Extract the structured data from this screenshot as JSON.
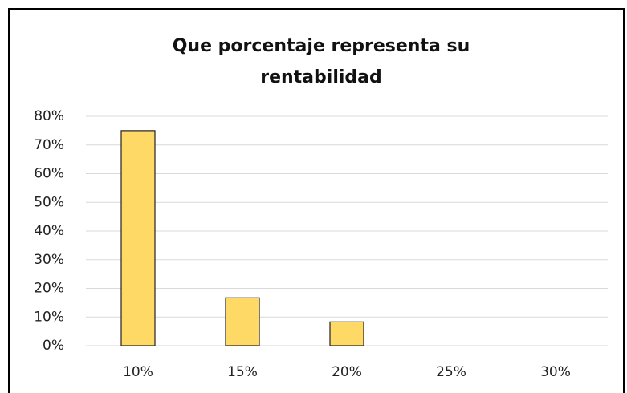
{
  "chart_data": {
    "type": "bar",
    "title": "Que porcentaje representa su rentabilidad",
    "categories": [
      "10%",
      "15%",
      "20%",
      "25%",
      "30%"
    ],
    "values": [
      75,
      16.7,
      8.3,
      0,
      0
    ],
    "color": "#ffd966",
    "ylim": [
      0,
      80
    ],
    "yticks": [
      {
        "value": 0,
        "label": "0%"
      },
      {
        "value": 10,
        "label": "10%"
      },
      {
        "value": 20,
        "label": "20%"
      },
      {
        "value": 30,
        "label": "30%"
      },
      {
        "value": 40,
        "label": "40%"
      },
      {
        "value": 50,
        "label": "50%"
      },
      {
        "value": 60,
        "label": "60%"
      },
      {
        "value": 70,
        "label": "70%"
      },
      {
        "value": 80,
        "label": "80%"
      }
    ],
    "grid": true
  }
}
